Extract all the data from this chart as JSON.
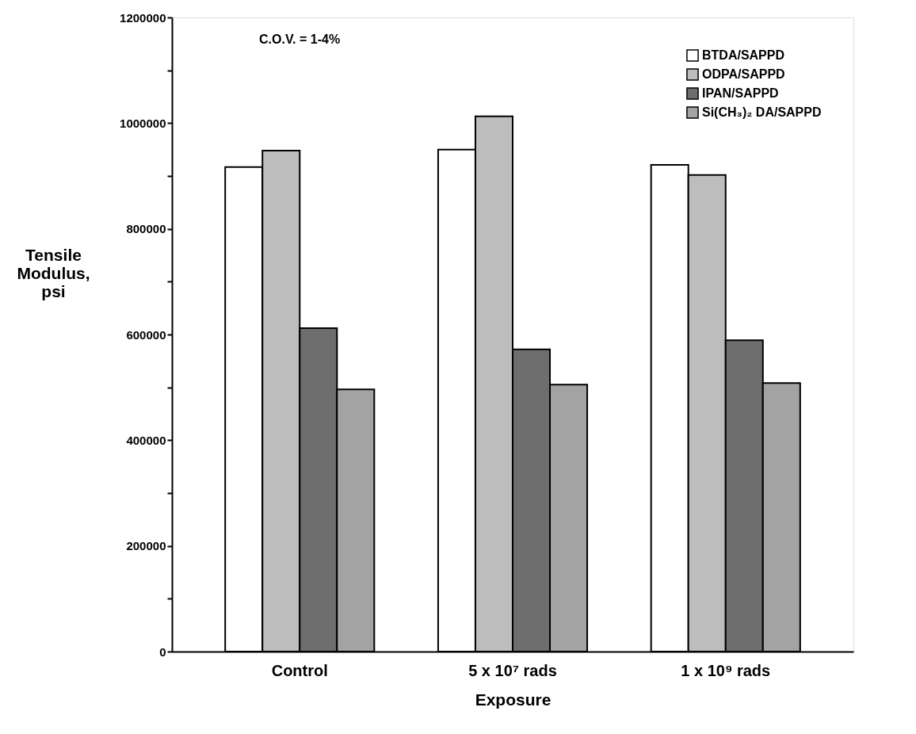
{
  "chart_data": {
    "type": "bar",
    "xlabel": "Exposure",
    "ylabel": "Tensile Modulus, psi",
    "categories": [
      "Control",
      "5 x 10⁷ rads",
      "1 x 10⁹ rads"
    ],
    "series": [
      {
        "name": "BTDA/SAPPD",
        "color": "#ffffff",
        "values": [
          917000,
          950000,
          921000
        ]
      },
      {
        "name": "ODPA/SAPPD",
        "color": "#bdbdbd",
        "values": [
          948000,
          1013000,
          902000
        ]
      },
      {
        "name": "IPAN/SAPPD",
        "color": "#6e6e6e",
        "values": [
          612000,
          572000,
          589000
        ]
      },
      {
        "name": "Si(CH₃)₂ DA/SAPPD",
        "color": "#a3a3a3",
        "values": [
          496000,
          505000,
          508000
        ]
      }
    ],
    "ylim": [
      0,
      1200000
    ],
    "yticks": [
      0,
      {
        "value": 100000,
        "label": null
      },
      200000,
      {
        "value": 300000,
        "label": null
      },
      400000,
      {
        "value": 500000,
        "label": null
      },
      600000,
      {
        "value": 700000,
        "label": null
      },
      800000,
      {
        "value": 900000,
        "label": null
      },
      1000000,
      {
        "value": 1100000,
        "label": null
      },
      1200000
    ],
    "annotations": [
      "C.O.V. = 1-4%"
    ],
    "legend": "top right",
    "grid": false
  }
}
